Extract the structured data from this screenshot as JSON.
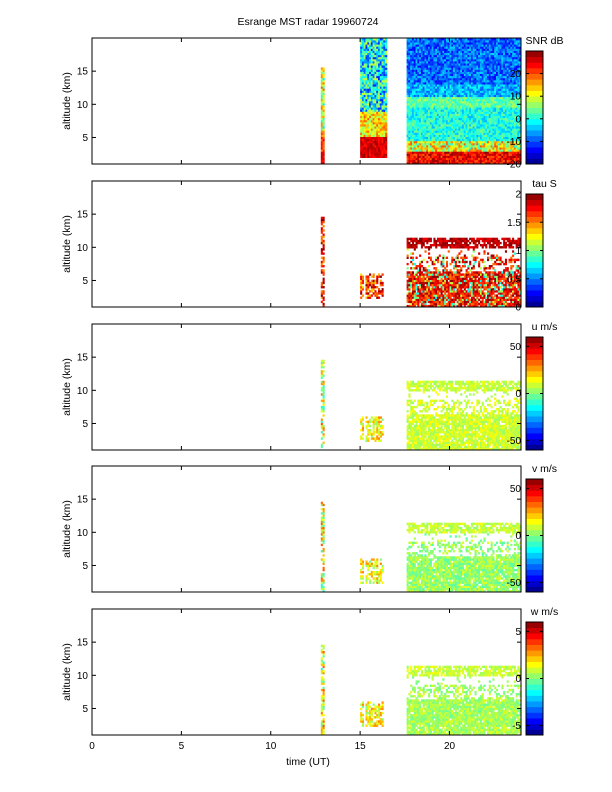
{
  "chart_data": {
    "type": "heatmap",
    "title": "Esrange MST radar 19960724",
    "xlabel": "time (UT)",
    "xlim": [
      0,
      24
    ],
    "xticks": [
      "0",
      "5",
      "10",
      "15",
      "20"
    ],
    "colormap": "jet",
    "panels": [
      {
        "id": "snr",
        "ylabel": "altitude (km)",
        "ylim": [
          1,
          20
        ],
        "yticks": [
          "5",
          "10",
          "15"
        ],
        "colorbar_label": "SNR dB",
        "clim": [
          -20,
          30
        ],
        "cticks": [
          "-20",
          "-10",
          "0",
          "10",
          "20"
        ],
        "pattern": "snr"
      },
      {
        "id": "tau",
        "ylabel": "altitude (km)",
        "ylim": [
          1,
          20
        ],
        "yticks": [
          "5",
          "10",
          "15"
        ],
        "colorbar_label": "tau S",
        "clim": [
          0,
          2
        ],
        "cticks": [
          "0",
          "0.5",
          "1",
          "1.5",
          "2"
        ],
        "pattern": "tau"
      },
      {
        "id": "u",
        "ylabel": "altitude (km)",
        "ylim": [
          1,
          20
        ],
        "yticks": [
          "5",
          "10",
          "15"
        ],
        "colorbar_label": "u m/s",
        "clim": [
          -60,
          60
        ],
        "cticks": [
          "-50",
          "0",
          "50"
        ],
        "pattern": "u"
      },
      {
        "id": "v",
        "ylabel": "altitude (km)",
        "ylim": [
          1,
          20
        ],
        "yticks": [
          "5",
          "10",
          "15"
        ],
        "colorbar_label": "v m/s",
        "clim": [
          -60,
          60
        ],
        "cticks": [
          "-50",
          "0",
          "50"
        ],
        "pattern": "v"
      },
      {
        "id": "w",
        "ylabel": "altitude (km)",
        "ylim": [
          1,
          20
        ],
        "yticks": [
          "5",
          "10",
          "15"
        ],
        "colorbar_label": "w m/s",
        "clim": [
          -6,
          6
        ],
        "cticks": [
          "-5",
          "0",
          "5"
        ],
        "pattern": "w"
      }
    ],
    "data_segments_UT": [
      [
        12.85,
        13.0
      ],
      [
        15.0,
        16.5
      ],
      [
        17.6,
        24.0
      ]
    ]
  }
}
